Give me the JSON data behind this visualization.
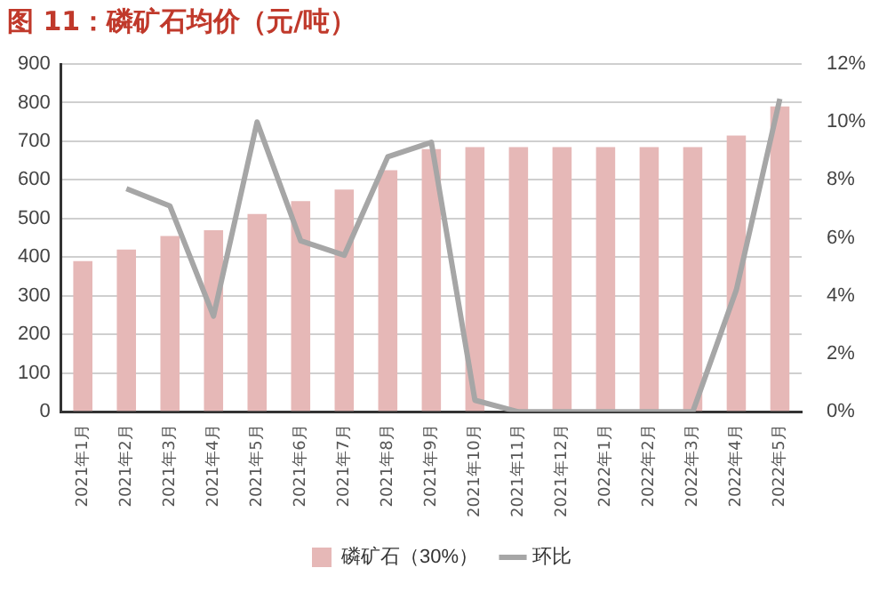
{
  "chart_data": {
    "type": "bar",
    "title": "图 11：磷矿石均价（元/吨）",
    "categories": [
      "2021年1月",
      "2021年2月",
      "2021年3月",
      "2021年4月",
      "2021年5月",
      "2021年6月",
      "2021年7月",
      "2021年8月",
      "2021年9月",
      "2021年10月",
      "2021年11月",
      "2021年12月",
      "2022年1月",
      "2022年2月",
      "2022年3月",
      "2022年4月",
      "2022年5月"
    ],
    "series": [
      {
        "name": "磷矿石（30%）",
        "color": "#e6b8b7",
        "values": [
          390,
          420,
          455,
          470,
          512,
          545,
          575,
          625,
          680,
          685,
          685,
          685,
          685,
          685,
          685,
          715,
          790
        ]
      },
      {
        "name": "环比",
        "type": "line",
        "axis": "y2",
        "color": "#a6a6a6",
        "values": [
          null,
          7.7,
          7.1,
          3.3,
          10.0,
          5.9,
          5.4,
          8.8,
          9.3,
          0.4,
          0,
          0,
          0,
          0,
          0,
          4.2,
          10.8
        ]
      }
    ],
    "ylim": [
      0,
      900
    ],
    "yticks": [
      0,
      100,
      200,
      300,
      400,
      500,
      600,
      700,
      800,
      900
    ],
    "y2lim": [
      0,
      12
    ],
    "y2ticks": [
      {
        "value": 0,
        "label": "0%"
      },
      {
        "value": 2,
        "label": "2%"
      },
      {
        "value": 4,
        "label": "4%"
      },
      {
        "value": 6,
        "label": "6%"
      },
      {
        "value": 8,
        "label": "8%"
      },
      {
        "value": 10,
        "label": "10%"
      },
      {
        "value": 12,
        "label": "12%"
      }
    ],
    "grid": "y",
    "legend": "bottom",
    "marker": "none"
  }
}
